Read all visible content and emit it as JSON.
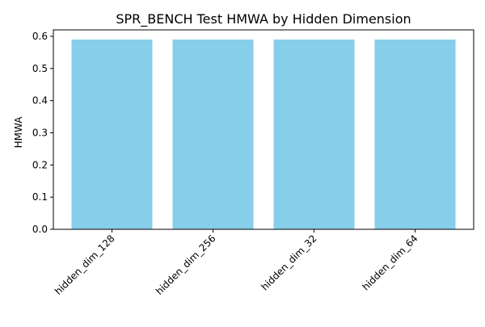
{
  "colors": {
    "bar": "#87ceeb",
    "axis": "#000000",
    "background": "#ffffff"
  },
  "chart_data": {
    "type": "bar",
    "title": "SPR_BENCH Test HMWA by Hidden Dimension",
    "xlabel": "",
    "ylabel": "HMWA",
    "categories": [
      "hidden_dim_128",
      "hidden_dim_256",
      "hidden_dim_32",
      "hidden_dim_64"
    ],
    "values": [
      0.59,
      0.59,
      0.59,
      0.59
    ],
    "ylim": [
      0,
      0.62
    ],
    "yticks": [
      "0.0",
      "0.1",
      "0.2",
      "0.3",
      "0.4",
      "0.5",
      "0.6"
    ],
    "ytick_values": [
      0,
      0.1,
      0.2,
      0.3,
      0.4,
      0.5,
      0.6
    ],
    "grid": false,
    "legend": "none"
  }
}
